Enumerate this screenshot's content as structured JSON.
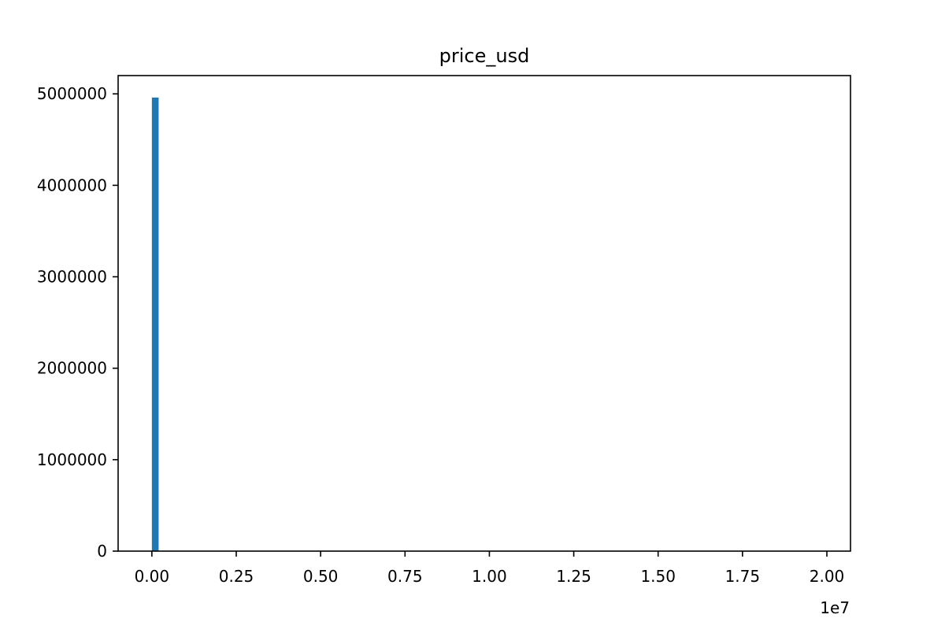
{
  "chart_data": {
    "type": "bar",
    "title": "price_usd",
    "xlabel": "",
    "ylabel": "",
    "x_offset_label": "1e7",
    "xlim": [
      -0.1,
      2.07
    ],
    "ylim": [
      0,
      5200000
    ],
    "x_ticks": [
      {
        "value": 0.0,
        "label": "0.00"
      },
      {
        "value": 0.25,
        "label": "0.25"
      },
      {
        "value": 0.5,
        "label": "0.50"
      },
      {
        "value": 0.75,
        "label": "0.75"
      },
      {
        "value": 1.0,
        "label": "1.00"
      },
      {
        "value": 1.25,
        "label": "1.25"
      },
      {
        "value": 1.5,
        "label": "1.50"
      },
      {
        "value": 1.75,
        "label": "1.75"
      },
      {
        "value": 2.0,
        "label": "2.00"
      }
    ],
    "y_ticks": [
      {
        "value": 0,
        "label": "0"
      },
      {
        "value": 1000000,
        "label": "1000000"
      },
      {
        "value": 2000000,
        "label": "2000000"
      },
      {
        "value": 3000000,
        "label": "3000000"
      },
      {
        "value": 4000000,
        "label": "4000000"
      },
      {
        "value": 5000000,
        "label": "5000000"
      }
    ],
    "bins": [
      {
        "start": 0.0,
        "end": 0.02,
        "count": 4960000
      }
    ],
    "grid": false,
    "bar_color": "#1f77b4"
  }
}
